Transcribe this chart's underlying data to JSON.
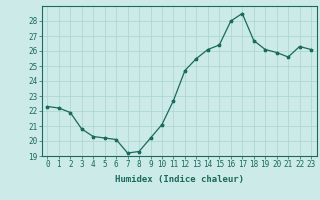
{
  "x": [
    0,
    1,
    2,
    3,
    4,
    5,
    6,
    7,
    8,
    9,
    10,
    11,
    12,
    13,
    14,
    15,
    16,
    17,
    18,
    19,
    20,
    21,
    22,
    23
  ],
  "y": [
    22.3,
    22.2,
    21.9,
    20.8,
    20.3,
    20.2,
    20.1,
    19.2,
    19.3,
    20.2,
    21.1,
    22.7,
    24.7,
    25.5,
    26.1,
    26.4,
    28.0,
    28.5,
    26.7,
    26.1,
    25.9,
    25.6,
    26.3,
    26.1
  ],
  "xlabel": "Humidex (Indice chaleur)",
  "ylim": [
    19,
    29
  ],
  "xlim_min": -0.5,
  "xlim_max": 23.5,
  "yticks": [
    19,
    20,
    21,
    22,
    23,
    24,
    25,
    26,
    27,
    28
  ],
  "xticks": [
    0,
    1,
    2,
    3,
    4,
    5,
    6,
    7,
    8,
    9,
    10,
    11,
    12,
    13,
    14,
    15,
    16,
    17,
    18,
    19,
    20,
    21,
    22,
    23
  ],
  "line_color": "#1a6b5a",
  "marker": "*",
  "bg_color": "#cceae7",
  "grid_color": "#aad4d0",
  "axis_color": "#1a6b5a",
  "label_fontsize": 6.5,
  "tick_fontsize": 5.5
}
